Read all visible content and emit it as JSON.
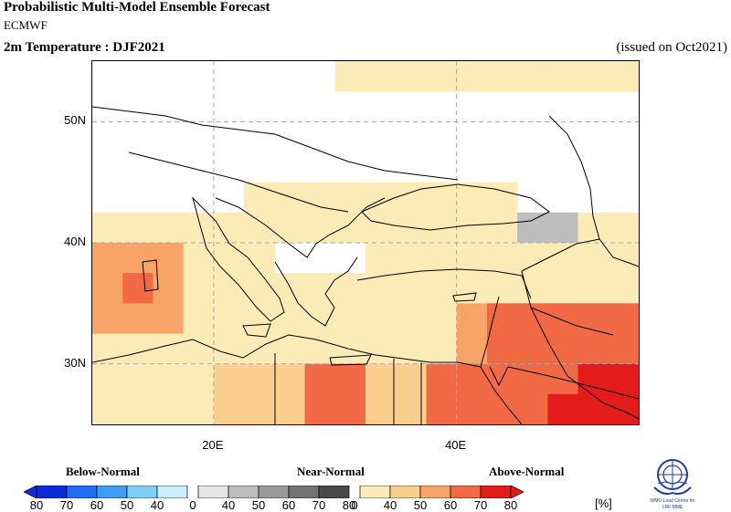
{
  "header": {
    "title": "Probabilistic Multi-Model Ensemble Forecast",
    "centre": "ECMWF",
    "variable": "2m Temperature : DJF2021",
    "issued": "(issued on Oct2021)"
  },
  "map": {
    "lon_range": [
      10,
      55
    ],
    "lat_range": [
      25,
      55
    ],
    "grid_lats": [
      30,
      40,
      50
    ],
    "grid_lons": [
      20,
      40
    ],
    "lat_labels": [
      "30N",
      "40N",
      "50N"
    ],
    "lon_labels": [
      "20E",
      "40E"
    ],
    "cell_size_deg": 2.5
  },
  "legend": {
    "categories": [
      "Below-Normal",
      "Near-Normal",
      "Above-Normal"
    ],
    "tick_labels": [
      "80",
      "70",
      "60",
      "50",
      "40",
      "0",
      "40",
      "50",
      "60",
      "70",
      "80",
      "0",
      "40",
      "50",
      "60",
      "70",
      "80"
    ],
    "unit": "[%]",
    "below_colors": [
      "#0b2cd6",
      "#1f6ef0",
      "#3c9ff5",
      "#7fd0f8",
      "#c8f0fc"
    ],
    "near_colors": [
      "#e6e6e6",
      "#bdbdbd",
      "#9a9a9a",
      "#737373",
      "#4a4a4a"
    ],
    "above_colors": [
      "#fbebb6",
      "#fbd08f",
      "#f8a468",
      "#f26a45",
      "#e31b1b"
    ]
  },
  "logo": {
    "caption_line1": "WMO Lead Centre for",
    "caption_line2": "LRF MME"
  }
}
